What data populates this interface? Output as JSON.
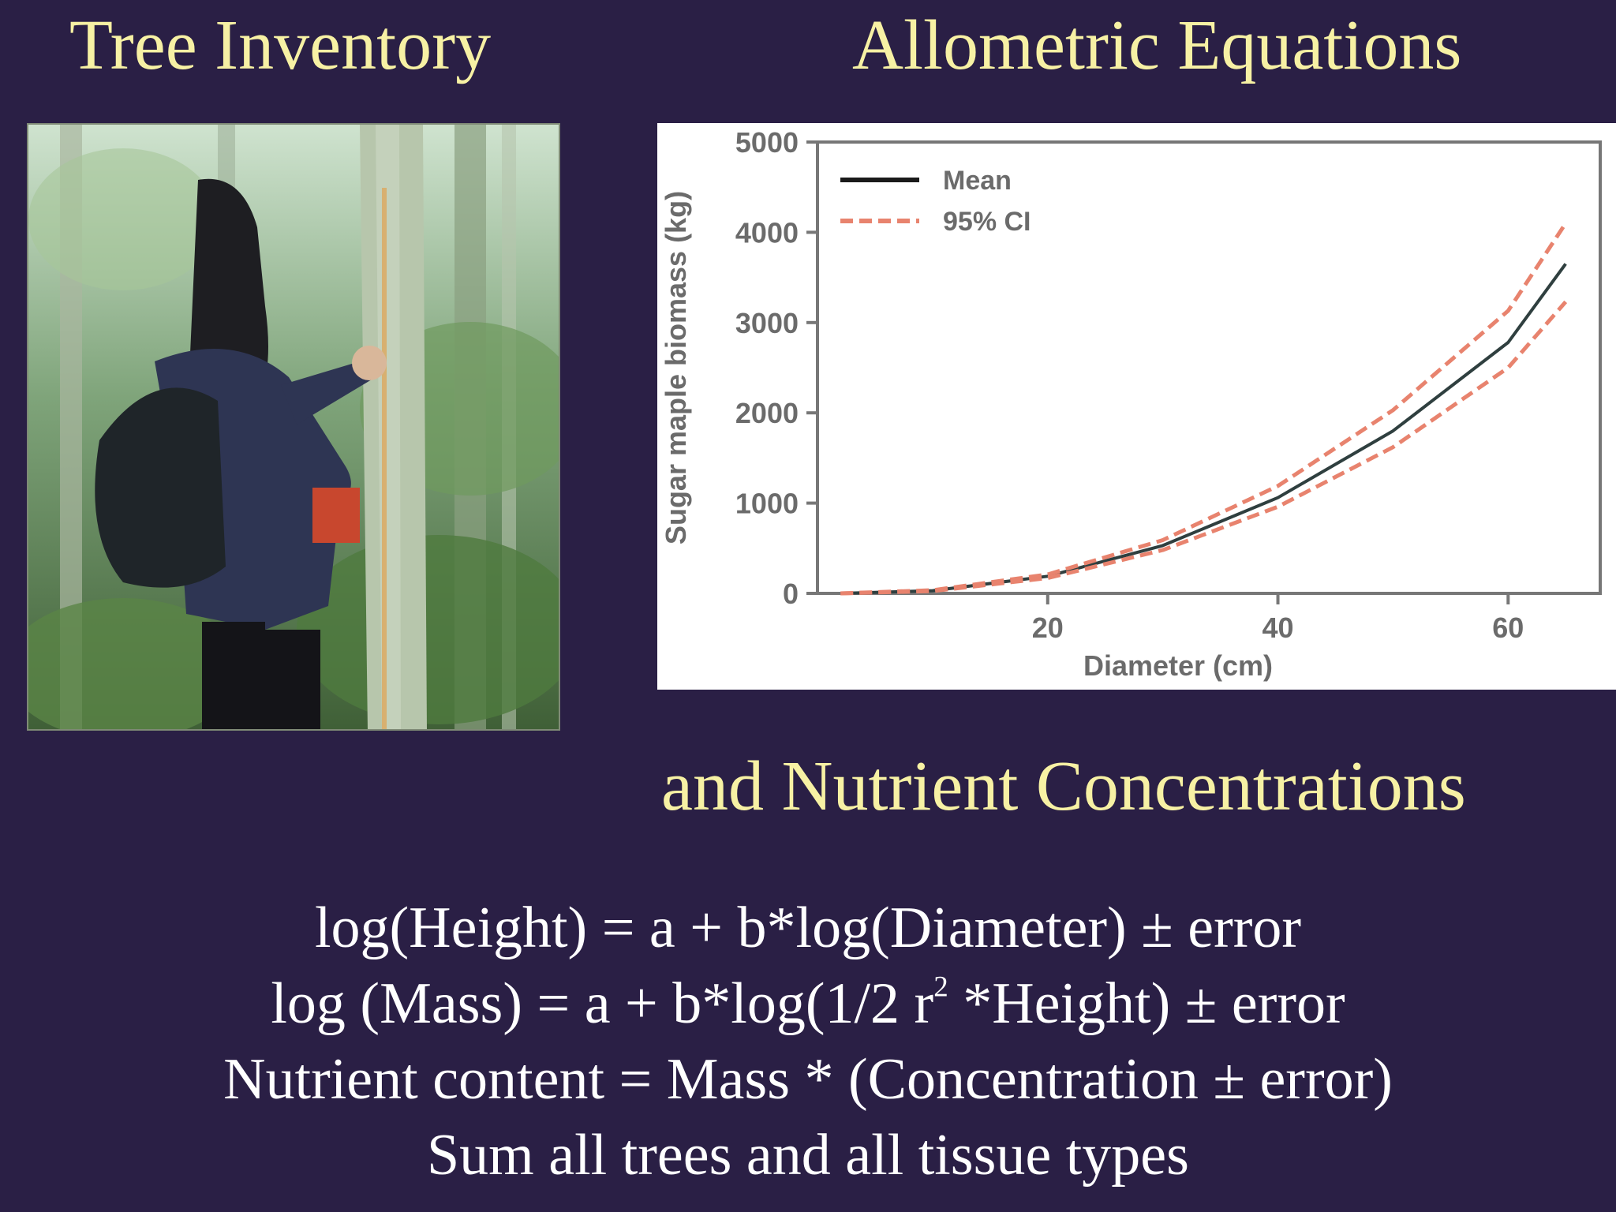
{
  "slide": {
    "left_title": "Tree Inventory",
    "right_title": "Allometric Equations",
    "sub_title": "and Nutrient Concentrations"
  },
  "equations": {
    "line1": "log(Height) = a + b*log(Diameter) ± error",
    "line2_pre": "log (Mass) = a + b*log(1/2 r",
    "line2_sup": "2",
    "line2_post": " *Height) ± error",
    "line3": "Nutrient content = Mass * (Concentration ± error)",
    "line4": "Sum all trees and all tissue types"
  },
  "colors": {
    "background": "#2a1f45",
    "title": "#f7f1a4",
    "body_text": "#ffffff",
    "mean_line": "#2f3f3f",
    "ci_line": "#e8836e"
  },
  "photo": {
    "icon": "person-measuring-tree-photo"
  },
  "chart_data": {
    "type": "line",
    "xlabel": "Diameter (cm)",
    "ylabel": "Sugar maple biomass (kg)",
    "xlim": [
      0,
      68
    ],
    "ylim": [
      0,
      5000
    ],
    "x_ticks": [
      20,
      40,
      60
    ],
    "y_ticks": [
      0,
      1000,
      2000,
      3000,
      4000,
      5000
    ],
    "grid": false,
    "legend_position": "top-left",
    "series": [
      {
        "name": "Mean",
        "style": "solid",
        "x": [
          2,
          10,
          20,
          30,
          40,
          50,
          60,
          65
        ],
        "y": [
          0,
          30,
          190,
          530,
          1060,
          1800,
          2780,
          3650
        ]
      },
      {
        "name": "95% CI",
        "style": "dashed",
        "x": [
          2,
          10,
          20,
          30,
          40,
          50,
          60,
          65
        ],
        "y": [
          0,
          35,
          210,
          590,
          1190,
          2030,
          3130,
          4100
        ]
      },
      {
        "name": "",
        "style": "dashed",
        "x": [
          2,
          10,
          20,
          30,
          40,
          50,
          60,
          65
        ],
        "y": [
          0,
          25,
          170,
          480,
          960,
          1620,
          2500,
          3230
        ]
      }
    ]
  }
}
